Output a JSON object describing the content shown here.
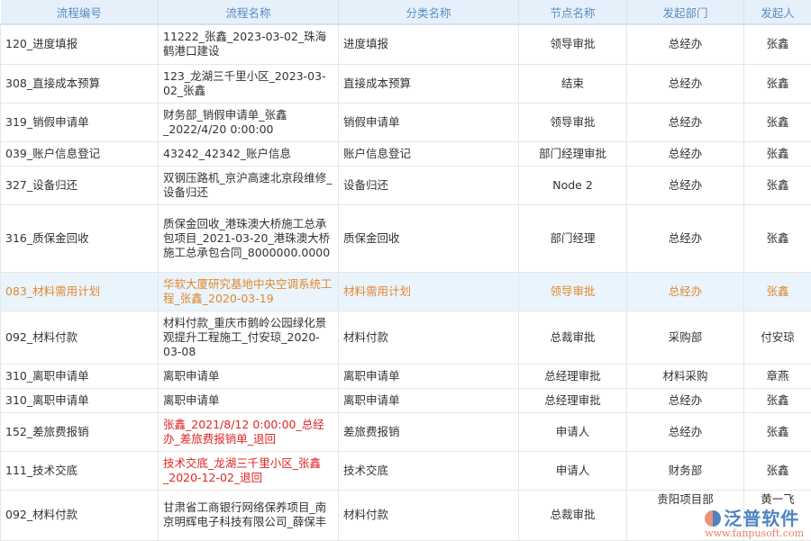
{
  "columns": [
    "流程编号",
    "流程名称",
    "分类名称",
    "节点名称",
    "发起部门",
    "发起人"
  ],
  "rows": [
    {
      "id": "120_进度填报",
      "name": "11222_张鑫_2023-03-02_珠海鹤港口建设",
      "category": "进度填报",
      "node": "领导审批",
      "dept": "总经办",
      "user": "张鑫",
      "style": "normal"
    },
    {
      "id": "308_直接成本预算",
      "name": "123_龙湖三千里小区_2023-03-02_张鑫",
      "category": "直接成本预算",
      "node": "结束",
      "dept": "总经办",
      "user": "张鑫",
      "style": "normal"
    },
    {
      "id": "319_销假申请单",
      "name": "财务部_销假申请单_张鑫_2022/4/20 0:00:00",
      "category": "销假申请单",
      "node": "领导审批",
      "dept": "总经办",
      "user": "张鑫",
      "style": "normal"
    },
    {
      "id": "039_账户信息登记",
      "name": "43242_42342_账户信息",
      "category": "账户信息登记",
      "node": "部门经理审批",
      "dept": "总经办",
      "user": "张鑫",
      "style": "normal"
    },
    {
      "id": "327_设备归还",
      "name": "双钢压路机_京沪高速北京段维修_设备归还",
      "category": "设备归还",
      "node": "Node 2",
      "dept": "总经办",
      "user": "张鑫",
      "style": "normal"
    },
    {
      "id": "316_质保金回收",
      "name": "质保金回收_港珠澳大桥施工总承包项目_2021-03-20_港珠澳大桥施工总承包合同_8000000.0000",
      "category": "质保金回收",
      "node": "部门经理",
      "dept": "总经办",
      "user": "张鑫",
      "style": "normal"
    },
    {
      "id": "083_材料需用计划",
      "name": "华软大厦研究基地中央空调系统工程_张鑫_2020-03-19",
      "category": "材料需用计划",
      "node": "领导审批",
      "dept": "总经办",
      "user": "张鑫",
      "style": "highlight"
    },
    {
      "id": "092_材料付款",
      "name": "材料付款_重庆市鹅岭公园绿化景观提升工程施工_付安琼_2020-03-08",
      "category": "材料付款",
      "node": "总裁审批",
      "dept": "采购部",
      "user": "付安琼",
      "style": "normal"
    },
    {
      "id": "310_离职申请单",
      "name": "离职申请单",
      "category": "离职申请单",
      "node": "总经理审批",
      "dept": "材料采购",
      "user": "章燕",
      "style": "normal"
    },
    {
      "id": "310_离职申请单",
      "name": "离职申请单",
      "category": "离职申请单",
      "node": "总经理审批",
      "dept": "总经办",
      "user": "张鑫",
      "style": "normal"
    },
    {
      "id": "152_差旅费报销",
      "name": "张鑫_2021/8/12 0:00:00_总经办_差旅费报销单_退回",
      "category": "差旅费报销",
      "node": "申请人",
      "dept": "总经办",
      "user": "张鑫",
      "style": "returned"
    },
    {
      "id": "111_技术交底",
      "name": "技术交底_龙湖三千里小区_张鑫_2020-12-02_退回",
      "category": "技术交底",
      "node": "申请人",
      "dept": "财务部",
      "user": "张鑫",
      "style": "returned"
    },
    {
      "id": "092_材料付款",
      "name": "甘肃省工商银行网络保养项目_南京明辉电子科技有限公司_薛保丰",
      "category": "材料付款",
      "node": "总裁审批",
      "dept": "贵阳项目部",
      "user": "黄一飞",
      "style": "normal"
    }
  ],
  "watermark": {
    "brand": "泛普软件",
    "url": "www.fanpusoft.com"
  },
  "colors": {
    "header_bg": "#e6f0fa",
    "header_text": "#5a8cc0",
    "highlight_bg": "#eaf4fd",
    "highlight_text": "#e0892e",
    "returned_text": "#e02424"
  }
}
